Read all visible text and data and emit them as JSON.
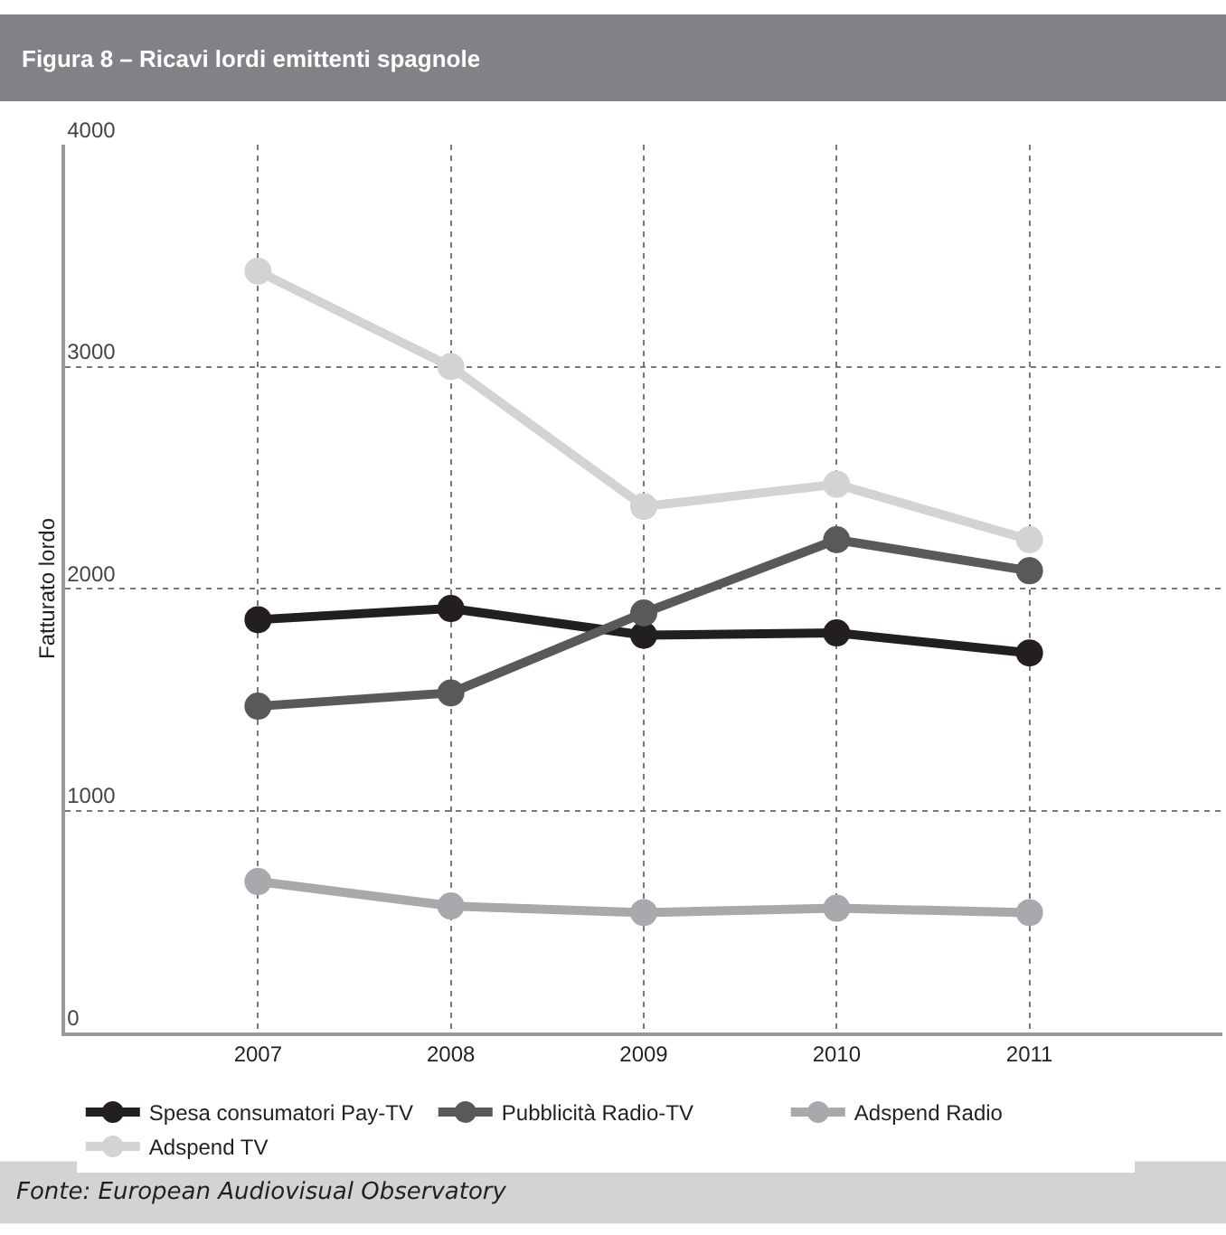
{
  "chart_data": {
    "type": "line",
    "title": "Figura 8 – Ricavi lordi emittenti spagnole",
    "ylabel": "Fatturato lordo",
    "x": [
      2007,
      2008,
      2009,
      2010,
      2011
    ],
    "xlim": [
      2006,
      2012
    ],
    "xticks": [
      2007,
      2008,
      2009,
      2010,
      2011
    ],
    "ylim": [
      0,
      4000
    ],
    "yticks": [
      0,
      1000,
      2000,
      3000,
      4000
    ],
    "grid": true,
    "legend": "bottom",
    "marker": "circle",
    "line_style": "solid",
    "series": [
      {
        "name": "Spesa consumatori Pay-TV",
        "color": "#231f20",
        "values": [
          1860,
          1910,
          1790,
          1800,
          1710
        ]
      },
      {
        "name": "Pubblicità Radio-TV",
        "color": "#58595b",
        "values": [
          1470,
          1530,
          1890,
          2220,
          2080
        ]
      },
      {
        "name": "Adspend Radio",
        "color": "#a7a9ac",
        "values": [
          680,
          570,
          540,
          560,
          540
        ]
      },
      {
        "name": "Adspend TV",
        "color": "#d1d3d4",
        "values": [
          3430,
          3000,
          2370,
          2470,
          2220
        ]
      }
    ],
    "annotations": [
      "Fonte: European Audiovisual Observatory"
    ]
  }
}
